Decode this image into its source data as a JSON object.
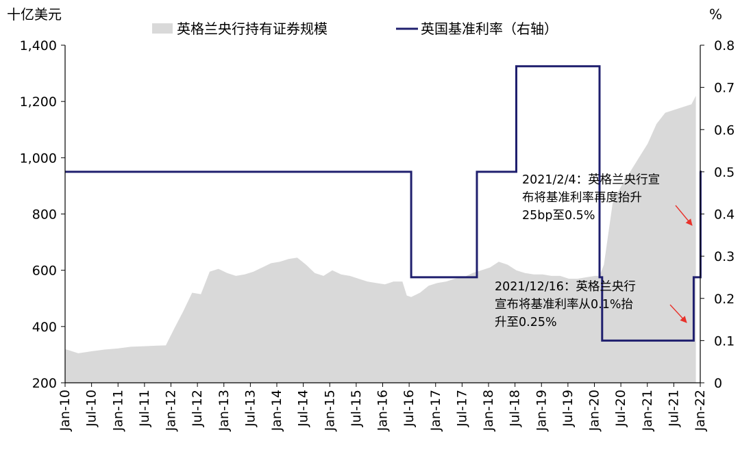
{
  "chart_data": {
    "type": "area+line",
    "left_unit": "十亿美元",
    "right_unit": "%",
    "left_ylim": [
      200,
      1400
    ],
    "left_ticks": [
      "200",
      "400",
      "600",
      "800",
      "1,000",
      "1,200",
      "1,400"
    ],
    "right_ylim": [
      0,
      0.8
    ],
    "right_ticks": [
      "0",
      "0.1",
      "0.2",
      "0.3",
      "0.4",
      "0.5",
      "0.6",
      "0.7",
      "0.8"
    ],
    "x_ticks": [
      "Jan-10",
      "Jul-10",
      "Jan-11",
      "Jul-11",
      "Jan-12",
      "Jul-12",
      "Jan-13",
      "Jul-13",
      "Jan-14",
      "Jul-14",
      "Jan-15",
      "Jul-15",
      "Jan-16",
      "Jul-16",
      "Jan-17",
      "Jul-17",
      "Jan-18",
      "Jul-18",
      "Jan-19",
      "Jul-19",
      "Jan-20",
      "Jul-20",
      "Jan-21",
      "Jul-21",
      "Jan-22"
    ],
    "grid": false,
    "legend": {
      "placement": "top"
    },
    "series": [
      {
        "name": "英格兰央行持有证券规模",
        "type": "area",
        "axis": "left",
        "color": "#d9d9d9",
        "x": [
          "2010-01",
          "2010-04",
          "2010-07",
          "2010-10",
          "2011-01",
          "2011-04",
          "2011-07",
          "2011-10",
          "2011-12",
          "2012-02",
          "2012-04",
          "2012-06",
          "2012-08",
          "2012-10",
          "2012-12",
          "2013-02",
          "2013-04",
          "2013-06",
          "2013-08",
          "2013-10",
          "2013-12",
          "2014-02",
          "2014-04",
          "2014-06",
          "2014-08",
          "2014-10",
          "2014-12",
          "2015-02",
          "2015-04",
          "2015-06",
          "2015-08",
          "2015-10",
          "2015-12",
          "2016-02",
          "2016-04",
          "2016-06",
          "2016-07",
          "2016-08",
          "2016-10",
          "2016-12",
          "2017-02",
          "2017-04",
          "2017-06",
          "2017-08",
          "2017-10",
          "2017-12",
          "2018-02",
          "2018-04",
          "2018-06",
          "2018-08",
          "2018-10",
          "2018-12",
          "2019-02",
          "2019-04",
          "2019-06",
          "2019-08",
          "2019-10",
          "2019-12",
          "2020-02",
          "2020-03",
          "2020-04",
          "2020-05",
          "2020-06",
          "2020-08",
          "2020-10",
          "2020-12",
          "2021-02",
          "2021-04",
          "2021-06",
          "2021-08",
          "2021-10",
          "2021-12",
          "2022-01"
        ],
        "values": [
          320,
          305,
          312,
          318,
          322,
          328,
          330,
          332,
          333,
          395,
          455,
          520,
          515,
          595,
          605,
          590,
          580,
          585,
          595,
          610,
          625,
          630,
          640,
          645,
          620,
          590,
          580,
          600,
          585,
          580,
          570,
          560,
          555,
          550,
          560,
          560,
          510,
          505,
          520,
          545,
          555,
          560,
          570,
          575,
          590,
          600,
          610,
          630,
          620,
          600,
          590,
          585,
          585,
          580,
          580,
          570,
          570,
          575,
          580,
          580,
          620,
          730,
          840,
          900,
          950,
          1000,
          1050,
          1120,
          1160,
          1170,
          1180,
          1190,
          1220
        ]
      },
      {
        "name": "英国基准利率（右轴）",
        "type": "step",
        "axis": "right",
        "color": "#1f1f6e",
        "x": [
          "2010-01",
          "2016-08",
          "2017-11",
          "2018-08",
          "2020-03",
          "2020-03-19",
          "2021-12-16",
          "2022-02-03"
        ],
        "values": [
          0.5,
          0.25,
          0.5,
          0.75,
          0.25,
          0.1,
          0.25,
          0.5
        ]
      }
    ],
    "annotations": [
      {
        "lines": [
          "2021/2/4：英格兰央行宣",
          "布将基准利率再度抬升",
          "25bp至0.5%"
        ]
      },
      {
        "lines": [
          "2021/12/16：英格兰央行",
          "宣布将基准利率从0.1%抬",
          "升至0.25%"
        ]
      }
    ]
  }
}
